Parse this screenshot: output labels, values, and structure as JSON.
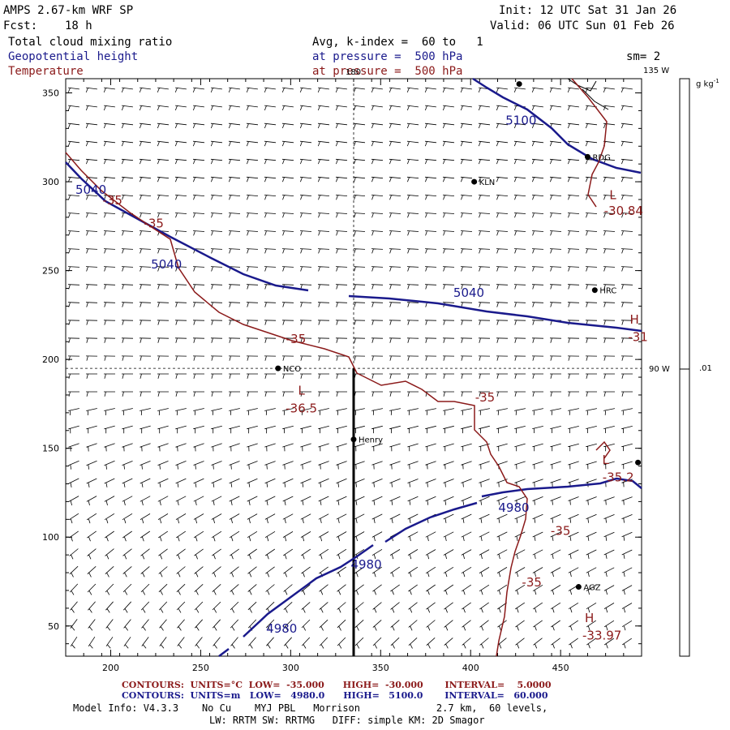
{
  "header": {
    "model": "AMPS 2.67-km WRF SP",
    "forecast_label": "Fcst:",
    "forecast_value": "18 h",
    "init": "Init: 12 UTC Sat 31 Jan 26",
    "valid": "Valid: 06 UTC Sun 01 Feb 26",
    "field1": "Total cloud mixing ratio",
    "field1_detail": "Avg, k-index =  60 to   1",
    "field2": "Geopotential height",
    "field2_detail": "at pressure =  500 hPa",
    "field3": "Temperature",
    "field3_detail": "at pressure =  500 hPa",
    "smoothing": "sm= 2"
  },
  "colorbar": {
    "unit": "g kg",
    "unit_exp": "-1",
    "tick_label": ".01"
  },
  "map": {
    "x_ticks": [
      200,
      250,
      300,
      350,
      400,
      450
    ],
    "y_ticks": [
      50,
      100,
      150,
      200,
      250,
      300,
      350
    ],
    "x_range": [
      175,
      495
    ],
    "y_range": [
      33,
      358
    ],
    "meridian_label": "180",
    "lon_135": "135 W",
    "lon_90": "90 W",
    "stations": [
      {
        "name": "KLN",
        "x": 402,
        "y": 300
      },
      {
        "name": "RDG",
        "x": 465,
        "y": 314
      },
      {
        "name": "HRC",
        "x": 469,
        "y": 239
      },
      {
        "name": "NCO",
        "x": 293,
        "y": 195
      },
      {
        "name": "Henry",
        "x": 335,
        "y": 155
      },
      {
        "name": "AGZ",
        "x": 460,
        "y": 72
      },
      {
        "name": "",
        "x": 427,
        "y": 355
      },
      {
        "name": "",
        "x": 493,
        "y": 142
      }
    ],
    "height_labels": [
      {
        "text": "5100",
        "x": 428,
        "y": 335
      },
      {
        "text": "5040",
        "x": 189,
        "y": 296
      },
      {
        "text": "5040",
        "x": 231,
        "y": 254
      },
      {
        "text": "5040",
        "x": 399,
        "y": 238
      },
      {
        "text": "4980",
        "x": 424,
        "y": 117
      },
      {
        "text": "4980",
        "x": 342,
        "y": 85
      },
      {
        "text": "4980",
        "x": 295,
        "y": 49
      }
    ],
    "temp_labels": [
      {
        "text": "-35",
        "x": 201,
        "y": 290
      },
      {
        "text": "-35",
        "x": 224,
        "y": 277
      },
      {
        "text": "-35",
        "x": 303,
        "y": 212
      },
      {
        "text": "-35",
        "x": 408,
        "y": 179
      },
      {
        "text": "-35",
        "x": 450,
        "y": 104
      },
      {
        "text": "-35",
        "x": 434,
        "y": 75
      },
      {
        "text": "L",
        "x": 479,
        "y": 293
      },
      {
        "text": "-30.84",
        "x": 485,
        "y": 284
      },
      {
        "text": "H",
        "x": 491,
        "y": 223
      },
      {
        "text": "-31",
        "x": 493,
        "y": 213
      },
      {
        "text": "L",
        "x": 306,
        "y": 183
      },
      {
        "text": "-36.5",
        "x": 306,
        "y": 173
      },
      {
        "text": "L",
        "x": 475,
        "y": 144
      },
      {
        "text": "-35.2",
        "x": 482,
        "y": 134
      },
      {
        "text": "H",
        "x": 466,
        "y": 55
      },
      {
        "text": "-33.97",
        "x": 473,
        "y": 45
      }
    ]
  },
  "footer": {
    "temp_contours": "CONTOURS:  UNITS=°C  LOW=  -35.000      HIGH=  -30.000       INTERVAL=    5.0000",
    "height_contours": "CONTOURS:  UNITS=m   LOW=   4980.0      HIGH=   5100.0       INTERVAL=   60.000",
    "model_info": "Model Info: V4.3.3    No Cu    MYJ PBL   Morrison             2.7 km,  60 levels,",
    "physics": "LW: RRTM SW: RRTMG   DIFF: simple KM: 2D Smagor"
  },
  "colors": {
    "height": "#1a1a8c",
    "temperature": "#8b1a1a",
    "wind": "#000000"
  }
}
